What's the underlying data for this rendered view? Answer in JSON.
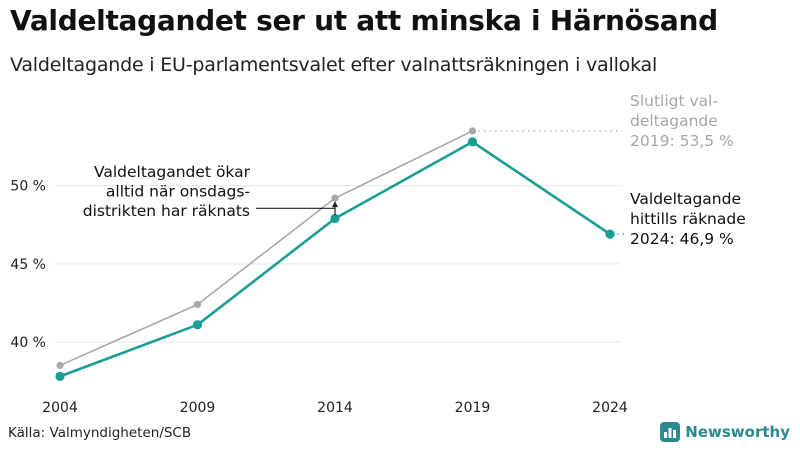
{
  "header": {
    "title": "Valdeltagandet ser ut att minska i Härnösand",
    "subtitle": "Valdeltagande i EU-parlamentsvalet efter valnattsräkningen i vallokal"
  },
  "chart_data": {
    "type": "line",
    "x": [
      "2004",
      "2009",
      "2014",
      "2019",
      "2024"
    ],
    "series": [
      {
        "name": "Slutligt valdeltagande",
        "color": "#a8a8a8",
        "values": [
          38.5,
          42.4,
          49.2,
          53.5,
          null
        ]
      },
      {
        "name": "Valdeltagande hittills räknade",
        "color": "#1a9e94",
        "values": [
          37.8,
          41.1,
          47.9,
          52.8,
          46.9
        ]
      }
    ],
    "y_ticks": [
      {
        "value": 40,
        "label": "40 %"
      },
      {
        "value": 45,
        "label": "45 %"
      },
      {
        "value": 50,
        "label": "50 %"
      }
    ],
    "ylim": [
      36.8,
      55.8
    ],
    "grid": true,
    "annotations": {
      "final": [
        "Slutligt val-",
        "deltagande",
        "2019: 53,5 %"
      ],
      "current": [
        "Valdeltagande",
        "hittills räknade",
        "2024: 46,9 %"
      ],
      "note": [
        "Valdeltagandet ökar",
        "alltid när onsdags-",
        "distrikten har räknats"
      ]
    }
  },
  "footer": {
    "source": "Källa: Valmyndigheten/SCB",
    "brand": "Newsworthy",
    "brand_color": "#2a8a8f",
    "brand_icon": "bar-chart-icon"
  }
}
